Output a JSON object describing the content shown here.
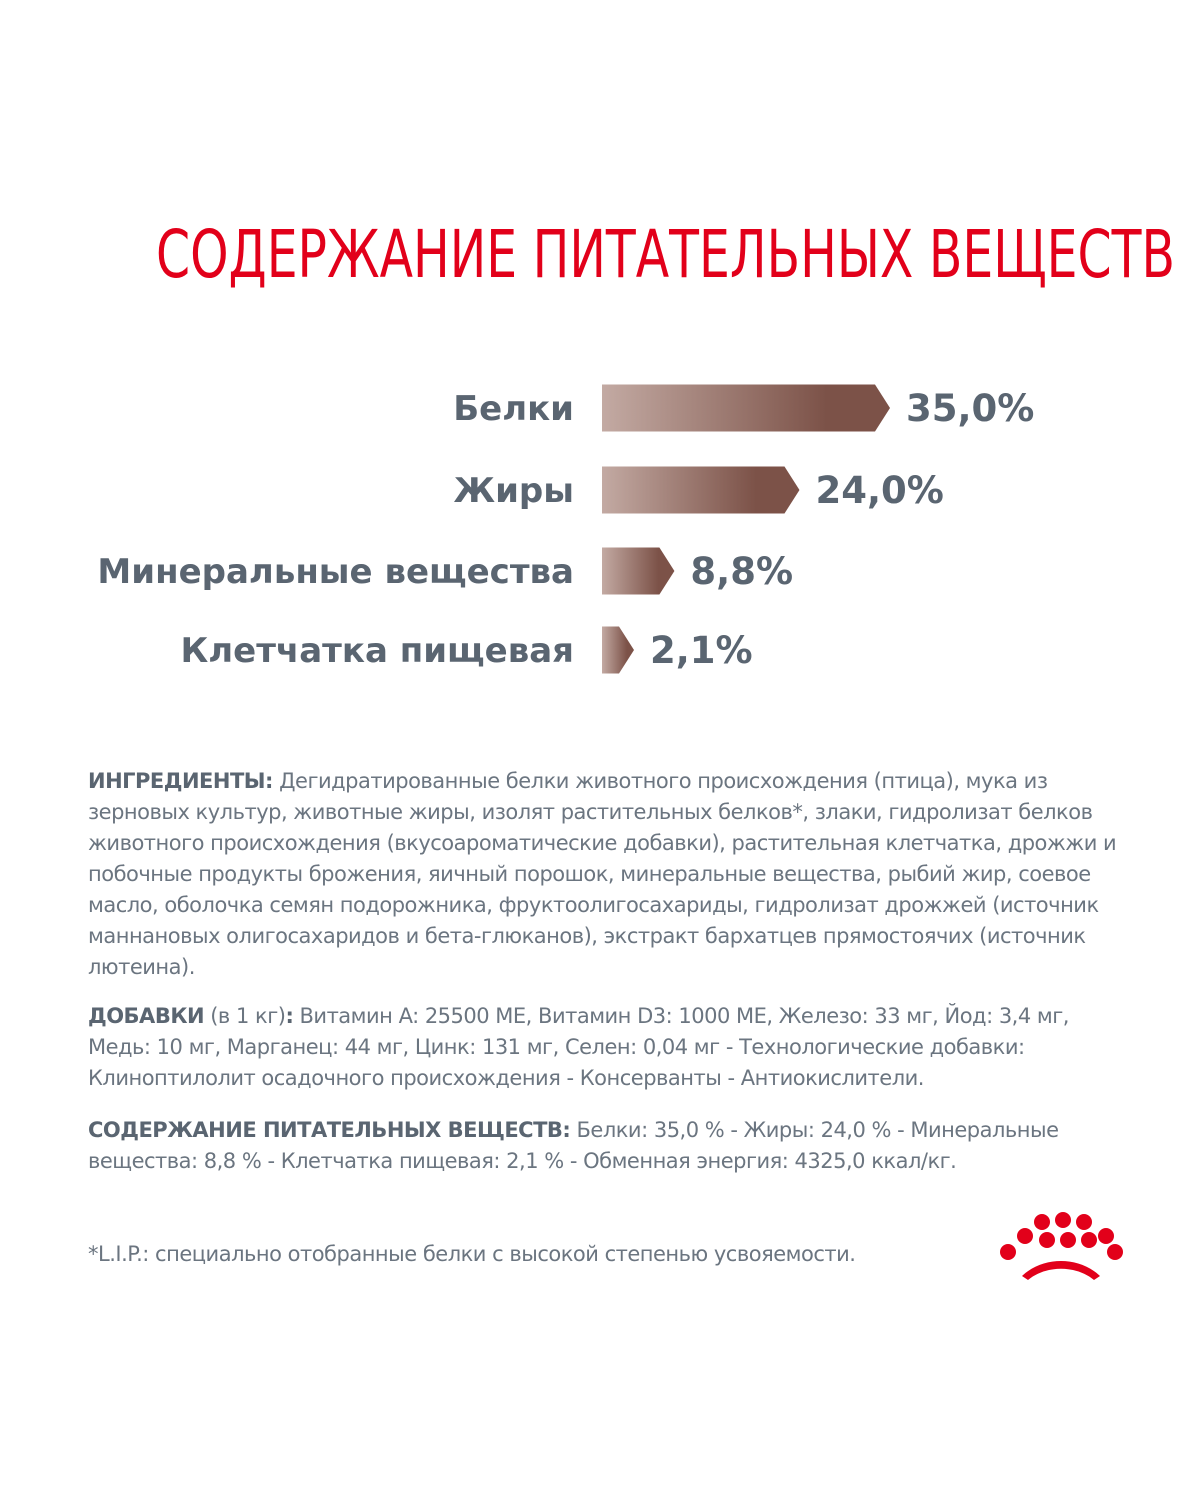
{
  "page": {
    "title": "СОДЕРЖАНИЕ ПИТАТЕЛЬНЫХ ВЕЩЕСТВ"
  },
  "colors": {
    "title": "#e2001a",
    "label": "#5a6571",
    "body_text": "#6b7580",
    "bar_light": "#c3aaa3",
    "bar_dark": "#7c5248",
    "logo": "#e2001a"
  },
  "chart_data": {
    "type": "bar",
    "orientation": "horizontal",
    "title": "СОДЕРЖАНИЕ ПИТАТЕЛЬНЫХ ВЕЩЕСТВ",
    "categories": [
      "Белки",
      "Жиры",
      "Минеральные вещества",
      "Клетчатка пищевая"
    ],
    "values": [
      35.0,
      24.0,
      8.8,
      2.1
    ],
    "value_labels": [
      "35,0%",
      "24,0%",
      "8,8%",
      "2,1%"
    ],
    "unit": "%",
    "xlim": [
      0,
      35
    ],
    "grid": false,
    "legend": "none"
  },
  "ingredients": {
    "heading": "ИНГРЕДИЕНТЫ:",
    "text": " Дегидратированные белки животного происхождения (птица), мука из зерновых культур, животные жиры, изолят растительных белков*, злаки, гидролизат белков животного происхождения (вкусоароматические добавки), растительная клетчатка, дрожжи и побочные продукты брожения, яичный порошок, минеральные вещества, рыбий жир, соевое масло, оболочка семян подорожника, фруктоолигосахариды, гидролизат дрожжей (источник маннановых олигосахаридов и бета-глюканов), экстракт бархатцев прямостоячих (источник лютеина)."
  },
  "additives": {
    "heading": "ДОБАВКИ",
    "sub": " (в 1 кг)",
    "colon": ":",
    "text": " Витамин A: 25500 МЕ, Витамин D3: 1000 МЕ, Железо: 33 мг, Йод: 3,4 мг, Медь: 10 мг, Марганец: 44 мг, Цинк: 131 мг, Селен: 0,04 мг - Технологические добавки: Клиноптилолит осадочного происхождения - Консерванты - Антиокислители."
  },
  "nutrients": {
    "heading": "СОДЕРЖАНИЕ ПИТАТЕЛЬНЫХ ВЕЩЕСТВ:",
    "text": " Белки: 35,0 % - Жиры: 24,0 % - Минеральные вещества: 8,8 % - Клетчатка пищевая: 2,1 % - Обменная энергия: 4325,0 ккал/кг."
  },
  "footnote": "*L.I.P.: специально отобранные белки с высокой степенью усвояемости.",
  "logo": {
    "icon": "royal-canin-crown-icon"
  }
}
